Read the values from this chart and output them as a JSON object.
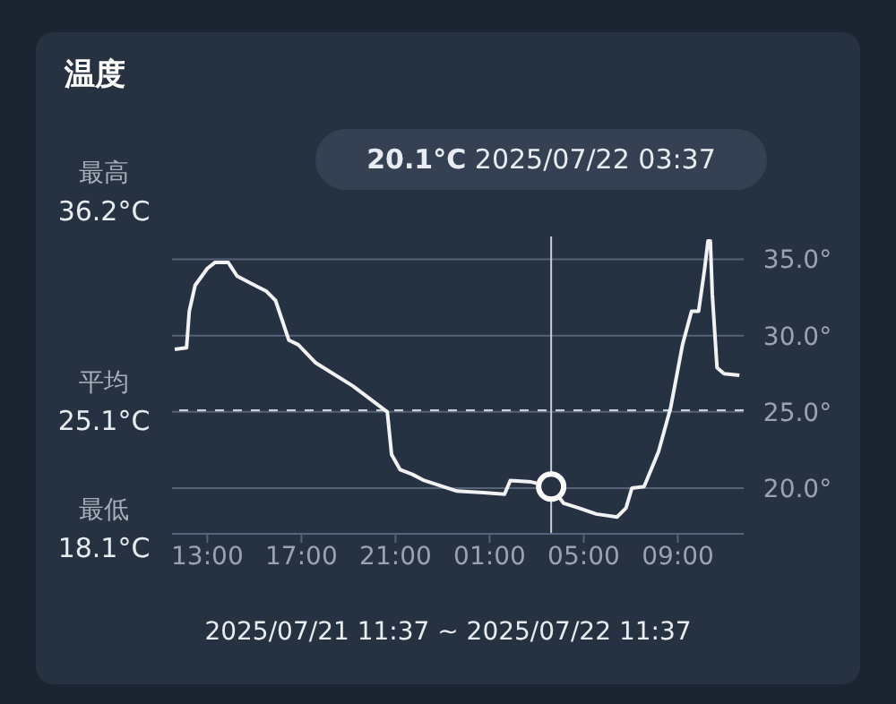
{
  "chart_data": {
    "type": "line",
    "title": "温度",
    "xlabel": "2025/07/21 11:37 ~ 2025/07/22 11:37",
    "x": [
      "2025-07-21T11:37",
      "2025-07-21T12:07",
      "2025-07-21T12:14",
      "2025-07-21T12:29",
      "2025-07-21T13:00",
      "2025-07-21T13:20",
      "2025-07-21T13:53",
      "2025-07-21T14:16",
      "2025-07-21T14:53",
      "2025-07-21T15:31",
      "2025-07-21T15:54",
      "2025-07-21T16:28",
      "2025-07-21T16:52",
      "2025-07-21T17:37",
      "2025-07-21T19:11",
      "2025-07-21T20:39",
      "2025-07-21T20:50",
      "2025-07-21T21:12",
      "2025-07-21T21:43",
      "2025-07-21T22:13",
      "2025-07-21T23:37",
      "2025-07-22T00:44",
      "2025-07-22T01:38",
      "2025-07-22T01:53",
      "2025-07-22T02:46",
      "2025-07-22T03:37",
      "2025-07-22T04:09",
      "2025-07-22T04:47",
      "2025-07-22T05:32",
      "2025-07-22T06:25",
      "2025-07-22T06:48",
      "2025-07-22T07:03",
      "2025-07-22T07:34",
      "2025-07-22T08:11",
      "2025-07-22T08:42",
      "2025-07-22T09:12",
      "2025-07-22T09:35",
      "2025-07-22T09:53",
      "2025-07-22T10:08",
      "2025-07-22T10:17",
      "2025-07-22T10:23",
      "2025-07-22T10:28",
      "2025-07-22T10:40",
      "2025-07-22T10:58",
      "2025-07-22T11:37"
    ],
    "series": [
      {
        "color": "#f2f2f2",
        "values": [
          29.1,
          29.2,
          31.6,
          33.3,
          34.4,
          34.8,
          34.8,
          33.9,
          33.4,
          32.9,
          32.3,
          29.7,
          29.4,
          28.2,
          26.7,
          25.0,
          22.2,
          21.2,
          20.9,
          20.5,
          19.8,
          19.7,
          19.6,
          20.5,
          20.4,
          20.1,
          19.0,
          18.7,
          18.3,
          18.1,
          18.7,
          20.0,
          20.1,
          22.4,
          25.3,
          29.4,
          31.6,
          31.6,
          34.3,
          36.2,
          36.2,
          32.7,
          27.9,
          27.5,
          27.4
        ]
      },
      {
        "type": "scatter",
        "color": "#ffffff",
        "marker": "circle",
        "x": [
          "2025-07-22T03:37"
        ],
        "values": [
          20.1
        ]
      }
    ],
    "xlim": [
      "2025-07-21T11:30",
      "2025-07-22T11:48"
    ],
    "xticks": [
      {
        "value": "2025-07-21T13:00",
        "label": "13:00"
      },
      {
        "value": "2025-07-21T17:00",
        "label": "17:00"
      },
      {
        "value": "2025-07-21T21:00",
        "label": "21:00"
      },
      {
        "value": "2025-07-22T01:00",
        "label": "01:00"
      },
      {
        "value": "2025-07-22T05:00",
        "label": "05:00"
      },
      {
        "value": "2025-07-22T09:00",
        "label": "09:00"
      }
    ],
    "ylim": [
      17,
      36.5
    ],
    "yticks": [
      {
        "value": 20,
        "label": "20.0°"
      },
      {
        "value": 25,
        "label": "25.0°"
      },
      {
        "value": 30,
        "label": "30.0°"
      },
      {
        "value": 35,
        "label": "35.0°"
      }
    ],
    "grid": "y",
    "line_style": "solid",
    "ref_lines": [
      {
        "axis": "y",
        "value": 25.1,
        "line_style": "dashed",
        "color": "#c8ced6"
      },
      {
        "axis": "x",
        "value": "2025-07-22T03:37",
        "line_style": "solid",
        "color": "#c8ced6"
      }
    ],
    "annotations": [
      "最高",
      "36.2°C",
      "平均",
      "25.1°C",
      "最低",
      "18.1°C",
      "20.1°C 2025/07/22 03:37"
    ]
  }
}
